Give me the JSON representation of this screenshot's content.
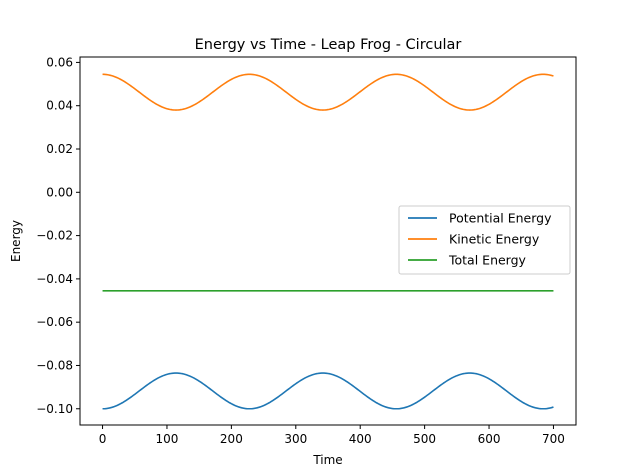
{
  "chart_data": {
    "type": "line",
    "title": "Energy vs Time - Leap Frog - Circular",
    "xlabel": "Time",
    "ylabel": "Energy",
    "xlim": [
      -35,
      735
    ],
    "ylim": [
      -0.1075,
      0.0625
    ],
    "xticks": [
      0,
      100,
      200,
      300,
      400,
      500,
      600,
      700
    ],
    "xtick_labels": [
      "0",
      "100",
      "200",
      "300",
      "400",
      "500",
      "600",
      "700"
    ],
    "yticks": [
      0.06,
      0.04,
      0.02,
      0.0,
      -0.02,
      -0.04,
      -0.06,
      -0.08,
      -0.1
    ],
    "ytick_labels": [
      "0.06",
      "0.04",
      "0.02",
      "0.00",
      "−0.02",
      "−0.04",
      "−0.06",
      "−0.08",
      "−0.10"
    ],
    "grid": false,
    "legend_position": "center-right",
    "time_range": [
      0,
      700
    ],
    "series": [
      {
        "name": "Potential Energy",
        "color": "#1f77b4",
        "min": -0.1,
        "max": -0.0835,
        "period": 228,
        "peaks_at": [
          114,
          342,
          570
        ],
        "troughs_at": [
          0,
          228,
          456,
          684
        ]
      },
      {
        "name": "Kinetic Energy",
        "color": "#ff7f0e",
        "min": 0.038,
        "max": 0.0545,
        "period": 228,
        "peaks_at": [
          0,
          228,
          456,
          684
        ],
        "troughs_at": [
          114,
          342,
          570
        ]
      },
      {
        "name": "Total Energy",
        "color": "#2ca02c",
        "min": -0.0455,
        "max": -0.0455,
        "period": 228,
        "peaks_at": [],
        "troughs_at": []
      }
    ]
  }
}
